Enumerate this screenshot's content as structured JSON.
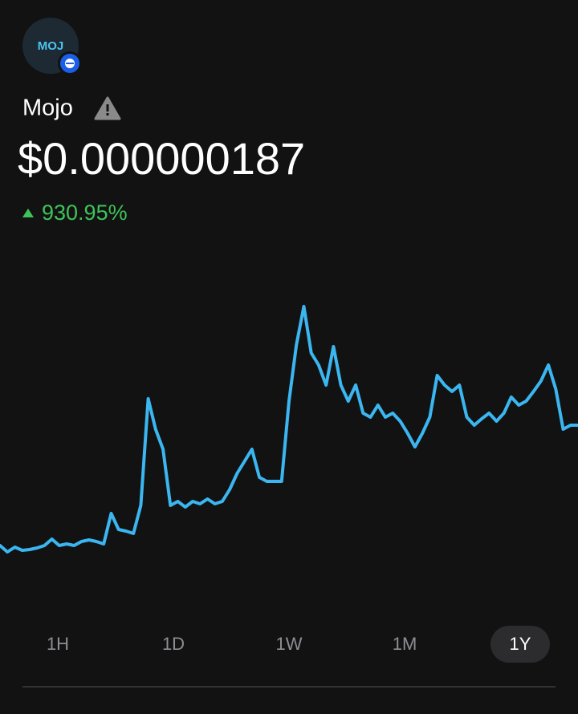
{
  "token": {
    "logo_text": "MOJ",
    "name": "Mojo",
    "price": "$0.000000187",
    "change": "930.95%"
  },
  "chart_data": {
    "type": "line",
    "color": "#3bb6f0",
    "ylim": [
      0,
      400
    ],
    "values": [
      20,
      12,
      18,
      14,
      15,
      17,
      20,
      28,
      20,
      22,
      20,
      25,
      27,
      25,
      22,
      60,
      40,
      38,
      35,
      70,
      203,
      165,
      140,
      70,
      75,
      68,
      75,
      72,
      78,
      72,
      75,
      90,
      110,
      125,
      140,
      105,
      100,
      100,
      100,
      200,
      270,
      318,
      260,
      245,
      220,
      268,
      220,
      200,
      220,
      185,
      180,
      195,
      180,
      185,
      175,
      160,
      143,
      160,
      180,
      232,
      220,
      212,
      220,
      180,
      170,
      178,
      185,
      175,
      185,
      205,
      195,
      200,
      212,
      225,
      245,
      215,
      165,
      170,
      170
    ]
  },
  "ranges": [
    "1H",
    "1D",
    "1W",
    "1M",
    "1Y"
  ],
  "selected_range": 4
}
